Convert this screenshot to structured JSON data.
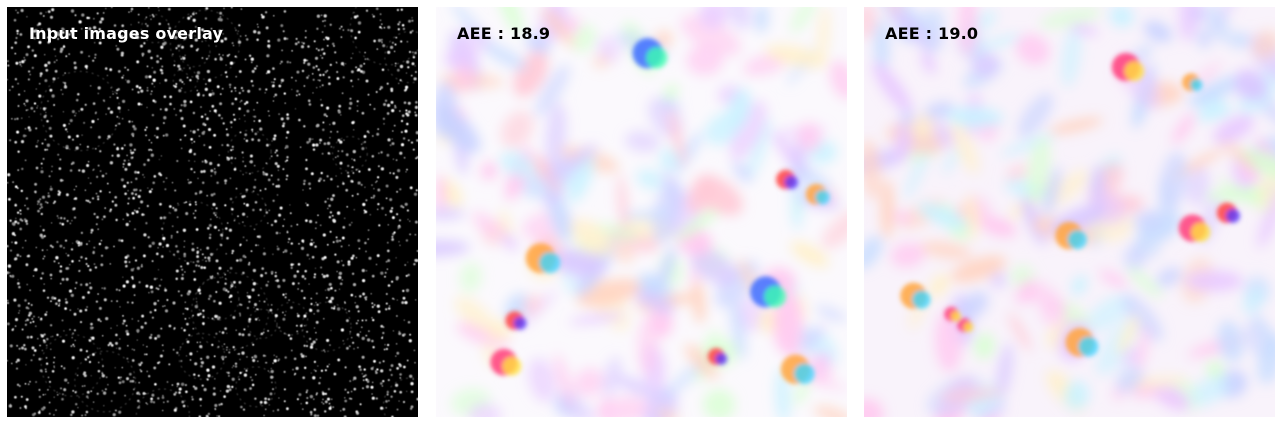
{
  "panels": [
    {
      "label": "Input images overlay",
      "kind": "particle-image"
    },
    {
      "label": "AEE : 18.9",
      "kind": "optical-flow-color-map"
    },
    {
      "label": "AEE : 19.0",
      "kind": "optical-flow-color-map"
    }
  ],
  "colors": {
    "particle_background": "#000000",
    "particle_color": "#ffffff",
    "flow_background": "#fbf9fd",
    "label_on_dark": "#ffffff",
    "label_on_light": "#000000"
  }
}
